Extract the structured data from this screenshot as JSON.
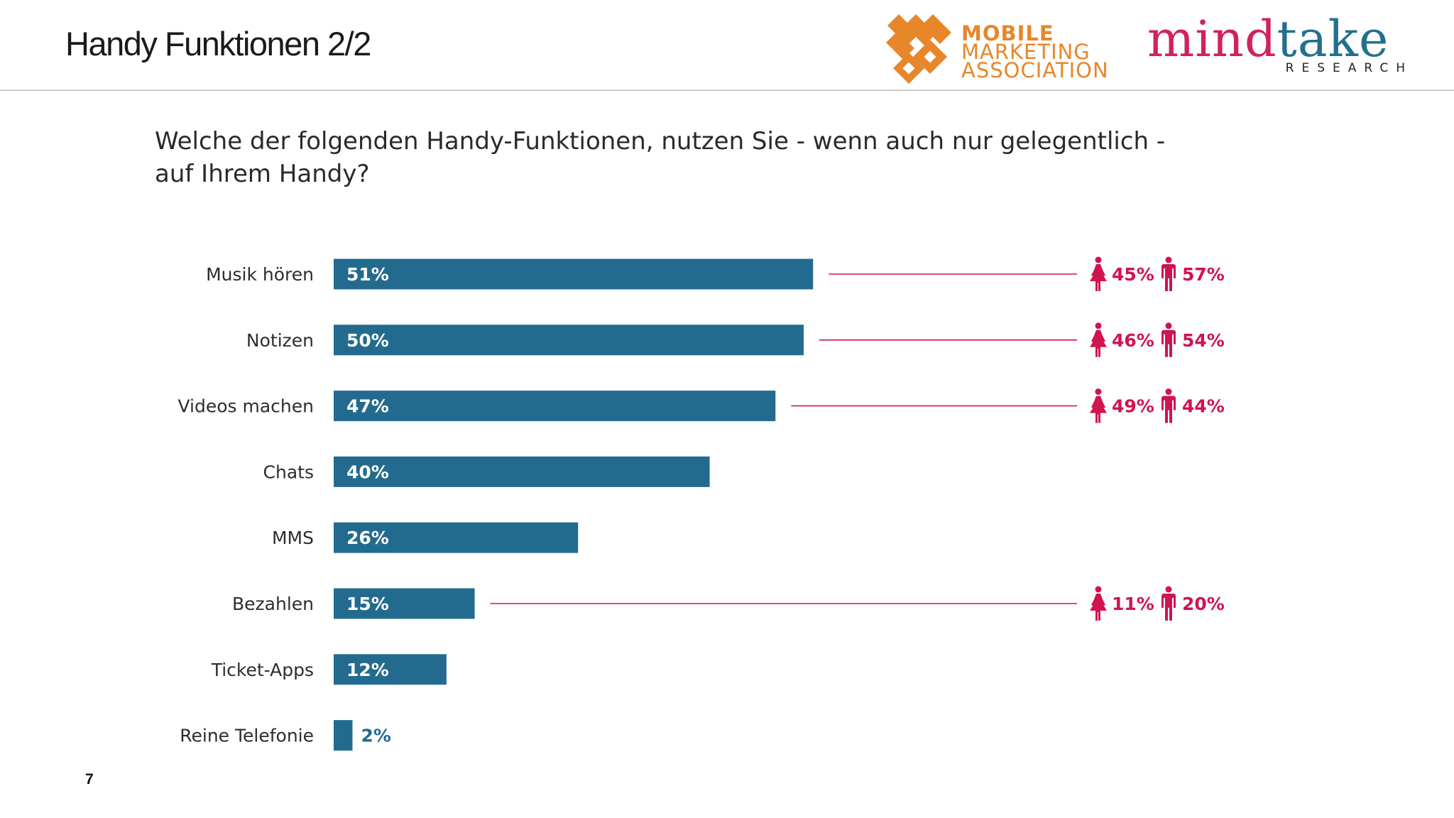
{
  "header": {
    "title": "Handy Funktionen 2/2",
    "page_number": "7"
  },
  "logos": {
    "mma": {
      "line1": "MOBILE",
      "line2": "MARKETING",
      "line3": "ASSOCIATION",
      "color": "#e8862a"
    },
    "mindtake": {
      "word_part1": "mind",
      "word_part2": "take",
      "subtitle": "RESEARCH",
      "color1": "#d1225a",
      "color2": "#23708e"
    }
  },
  "colors": {
    "bar": "#236b8e",
    "accent": "#d1134f"
  },
  "chart_data": {
    "type": "bar",
    "orientation": "horizontal",
    "title": "Welche der folgenden Handy-Funktionen, nutzen Sie - wenn auch nur gelegentlich - auf Ihrem Handy?",
    "categories": [
      "Musik hören",
      "Notizen",
      "Videos machen",
      "Chats",
      "MMS",
      "Bezahlen",
      "Ticket-Apps",
      "Reine Telefonie"
    ],
    "values": [
      51,
      50,
      47,
      40,
      26,
      15,
      12,
      2
    ],
    "value_labels": [
      "51%",
      "50%",
      "47%",
      "40%",
      "26%",
      "15%",
      "12%",
      "2%"
    ],
    "xlim": [
      0,
      100
    ],
    "grid": false,
    "gender_breakdown": [
      {
        "category": "Musik hören",
        "female": 45,
        "male": 57,
        "female_label": "45%",
        "male_label": "57%"
      },
      {
        "category": "Notizen",
        "female": 46,
        "male": 54,
        "female_label": "46%",
        "male_label": "54%"
      },
      {
        "category": "Videos machen",
        "female": 49,
        "male": 44,
        "female_label": "49%",
        "male_label": "44%"
      },
      {
        "category": "Bezahlen",
        "female": 11,
        "male": 20,
        "female_label": "11%",
        "male_label": "20%"
      }
    ]
  }
}
